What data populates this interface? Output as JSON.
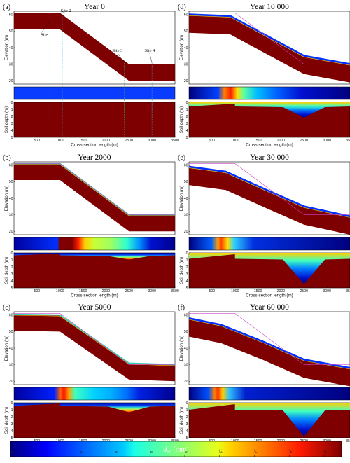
{
  "chart_data": [
    {
      "panel": "(a)",
      "title": "Year 0",
      "type": "area",
      "surface": [
        [
          0,
          61
        ],
        [
          1000,
          61
        ],
        [
          2500,
          30
        ],
        [
          3500,
          30
        ]
      ],
      "ylabel": "Elevation (m)",
      "xlabel": "Cross-section length (m)",
      "depth_ylabel": "Soil depth (m)",
      "sites": [
        "Site 1",
        "Site 2",
        "Site 3",
        "Site 4"
      ]
    },
    {
      "panel": "(b)",
      "title": "Year 2000",
      "type": "area",
      "surface": [
        [
          0,
          61
        ],
        [
          1000,
          61
        ],
        [
          2500,
          30
        ],
        [
          3500,
          30
        ]
      ],
      "ylabel": "Elevation (m)",
      "xlabel": "Cross-section length (m)",
      "depth_ylabel": "Soil depth (m)"
    },
    {
      "panel": "(c)",
      "title": "Year 5000",
      "type": "area",
      "surface": [
        [
          0,
          60.5
        ],
        [
          1000,
          60
        ],
        [
          2500,
          31
        ],
        [
          3500,
          30
        ]
      ],
      "ylabel": "Elevation (m)",
      "xlabel": "Cross-section length (m)",
      "depth_ylabel": "Soil depth (m)"
    },
    {
      "panel": "(d)",
      "title": "Year 10 000",
      "type": "area",
      "surface": [
        [
          0,
          60
        ],
        [
          900,
          59
        ],
        [
          1700,
          47
        ],
        [
          2500,
          35
        ],
        [
          3500,
          30
        ]
      ],
      "ylabel": "Elevation (m)",
      "xlabel": "Cross-section length (m)",
      "depth_ylabel": "Soil depth (m)"
    },
    {
      "panel": "(e)",
      "title": "Year 30 000",
      "type": "area",
      "surface": [
        [
          0,
          59
        ],
        [
          800,
          56
        ],
        [
          1600,
          46
        ],
        [
          2500,
          35
        ],
        [
          3500,
          29
        ]
      ],
      "ylabel": "Elevation (m)",
      "xlabel": "Cross-section length (m)",
      "depth_ylabel": "Soil depth (m)"
    },
    {
      "panel": "(f)",
      "title": "Year 60 000",
      "type": "area",
      "surface": [
        [
          0,
          58
        ],
        [
          700,
          54
        ],
        [
          1600,
          44
        ],
        [
          2500,
          33
        ],
        [
          3500,
          28
        ]
      ],
      "ylabel": "Elevation (m)",
      "xlabel": "Cross-section length (m)",
      "depth_ylabel": "Soil depth (m)"
    }
  ],
  "axes": {
    "x_ticks": [
      "500",
      "1000",
      "1500",
      "2000",
      "2500",
      "3000",
      "3500"
    ],
    "elev_ticks": [
      "20",
      "30",
      "40",
      "50",
      "60"
    ],
    "depth_ticks": [
      "0",
      "1",
      "2",
      "3",
      "4",
      "5"
    ],
    "xlim": [
      0,
      3500
    ],
    "elev_lim": [
      18,
      62
    ],
    "depth_lim": [
      0,
      5
    ]
  },
  "colorbar": {
    "label": "d50 (mm)",
    "label_main": "d",
    "label_sub": "50",
    "label_unit": " (mm)",
    "ticks": [
      "0",
      "2",
      "4",
      "6",
      "8",
      "10",
      "12",
      "14",
      "16",
      "18"
    ],
    "range": [
      0,
      19
    ]
  },
  "colors": {
    "coarse": "#7f0000",
    "fine": "#00007f",
    "line": "#cc44cc"
  }
}
